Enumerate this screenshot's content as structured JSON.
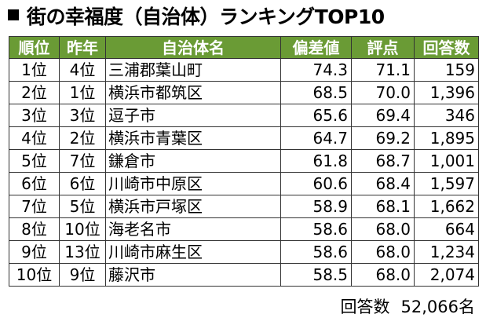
{
  "title": "街の幸福度（自治体）ランキングTOP10",
  "columns": [
    "順位",
    "昨年",
    "自治体名",
    "偏差値",
    "評点",
    "回答数"
  ],
  "rows": [
    {
      "rank": "1位",
      "last_year": "4位",
      "municipality": "三浦郡葉山町",
      "deviation": "74.3",
      "score": "71.1",
      "responses": "159"
    },
    {
      "rank": "2位",
      "last_year": "1位",
      "municipality": "横浜市都筑区",
      "deviation": "68.5",
      "score": "70.0",
      "responses": "1,396"
    },
    {
      "rank": "3位",
      "last_year": "3位",
      "municipality": "逗子市",
      "deviation": "65.6",
      "score": "69.4",
      "responses": "346"
    },
    {
      "rank": "4位",
      "last_year": "2位",
      "municipality": "横浜市青葉区",
      "deviation": "64.7",
      "score": "69.2",
      "responses": "1,895"
    },
    {
      "rank": "5位",
      "last_year": "7位",
      "municipality": "鎌倉市",
      "deviation": "61.8",
      "score": "68.7",
      "responses": "1,001"
    },
    {
      "rank": "6位",
      "last_year": "6位",
      "municipality": "川崎市中原区",
      "deviation": "60.6",
      "score": "68.4",
      "responses": "1,597"
    },
    {
      "rank": "7位",
      "last_year": "5位",
      "municipality": "横浜市戸塚区",
      "deviation": "58.9",
      "score": "68.1",
      "responses": "1,662"
    },
    {
      "rank": "8位",
      "last_year": "10位",
      "municipality": "海老名市",
      "deviation": "58.6",
      "score": "68.0",
      "responses": "664"
    },
    {
      "rank": "9位",
      "last_year": "13位",
      "municipality": "川崎市麻生区",
      "deviation": "58.6",
      "score": "68.0",
      "responses": "1,234"
    },
    {
      "rank": "10位",
      "last_year": "9位",
      "municipality": "藤沢市",
      "deviation": "58.5",
      "score": "68.0",
      "responses": "2,074"
    }
  ],
  "footer": {
    "label": "回答数",
    "value": "52,066名"
  },
  "colors": {
    "header_bg": "#6a9b35",
    "header_text": "#ffffff",
    "border": "#333333"
  }
}
